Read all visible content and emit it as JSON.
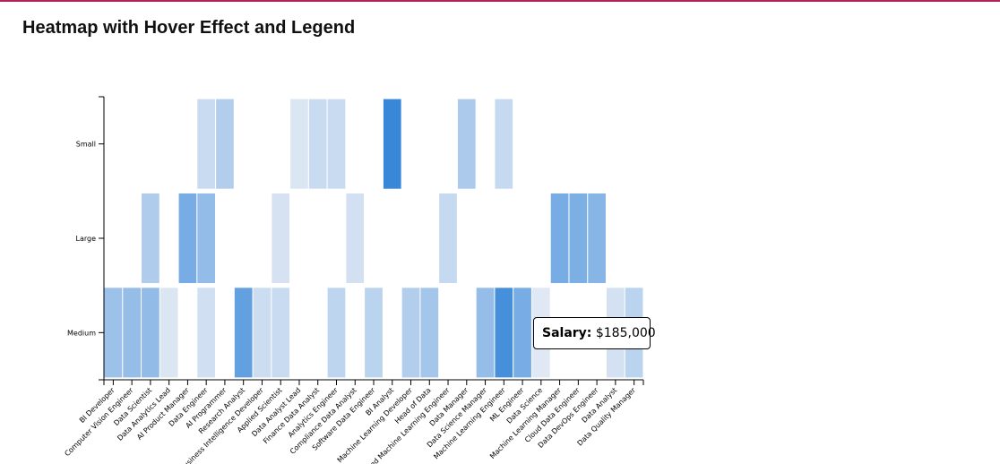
{
  "page": {
    "title": "Heatmap with Hover Effect and Legend"
  },
  "tooltip": {
    "label": "Salary:",
    "value": "$185,000"
  },
  "chart_data": {
    "type": "heatmap",
    "title": "Heatmap with Hover Effect and Legend",
    "xlabel": "",
    "ylabel": "",
    "x_categories": [
      "BI Developer",
      "Computer Vision Engineer",
      "Data Scientist",
      "Data Analytics Lead",
      "AI Product Manager",
      "Data Engineer",
      "AI Programmer",
      "Research Analyst",
      "Business Intelligence Developer",
      "Applied Scientist",
      "Data Analyst Lead",
      "Finance Data Analyst",
      "Analytics Engineer",
      "Compliance Data Analyst",
      "Software Data Engineer",
      "BI Analyst",
      "Machine Learning Developer",
      "Head of Data",
      "Applied Machine Learning Engineer",
      "Data Manager",
      "Data Science Manager",
      "Machine Learning Engineer",
      "ML Engineer",
      "Data Science",
      "Machine Learning Manager",
      "Cloud Data Engineer",
      "Data DevOps Engineer",
      "Data Analyst",
      "Data Quality Manager"
    ],
    "y_categories": [
      "Small",
      "Large",
      "Medium"
    ],
    "color_scale": {
      "low": "#e6ecf5",
      "high": "#2f82d8"
    },
    "cells": [
      {
        "x": "Data Engineer",
        "y": "Small",
        "value": 0.16
      },
      {
        "x": "AI Programmer",
        "y": "Small",
        "value": 0.28
      },
      {
        "x": "Data Analyst Lead",
        "y": "Small",
        "value": 0.06
      },
      {
        "x": "Finance Data Analyst",
        "y": "Small",
        "value": 0.16
      },
      {
        "x": "Analytics Engineer",
        "y": "Small",
        "value": 0.16
      },
      {
        "x": "BI Analyst",
        "y": "Small",
        "value": 0.95
      },
      {
        "x": "Data Manager",
        "y": "Small",
        "value": 0.32
      },
      {
        "x": "Machine Learning Engineer",
        "y": "Small",
        "value": 0.18
      },
      {
        "x": "Data Scientist",
        "y": "Large",
        "value": 0.3
      },
      {
        "x": "AI Product Manager",
        "y": "Large",
        "value": 0.6
      },
      {
        "x": "Data Engineer",
        "y": "Large",
        "value": 0.45
      },
      {
        "x": "Applied Scientist",
        "y": "Large",
        "value": 0.09
      },
      {
        "x": "Compliance Data Analyst",
        "y": "Large",
        "value": 0.11
      },
      {
        "x": "Applied Machine Learning Engineer",
        "y": "Large",
        "value": 0.18
      },
      {
        "x": "Machine Learning Manager",
        "y": "Large",
        "value": 0.6
      },
      {
        "x": "Cloud Data Engineer",
        "y": "Large",
        "value": 0.58
      },
      {
        "x": "Data DevOps Engineer",
        "y": "Large",
        "value": 0.52
      },
      {
        "x": "BI Developer",
        "y": "Medium",
        "value": 0.4
      },
      {
        "x": "Computer Vision Engineer",
        "y": "Medium",
        "value": 0.44
      },
      {
        "x": "Data Scientist",
        "y": "Medium",
        "value": 0.46
      },
      {
        "x": "Data Analytics Lead",
        "y": "Medium",
        "value": 0.06
      },
      {
        "x": "Data Engineer",
        "y": "Medium",
        "value": 0.12
      },
      {
        "x": "Research Analyst",
        "y": "Medium",
        "value": 0.72
      },
      {
        "x": "Business Intelligence Developer",
        "y": "Medium",
        "value": 0.14
      },
      {
        "x": "Applied Scientist",
        "y": "Medium",
        "value": 0.16
      },
      {
        "x": "Analytics Engineer",
        "y": "Medium",
        "value": 0.22
      },
      {
        "x": "Software Data Engineer",
        "y": "Medium",
        "value": 0.24
      },
      {
        "x": "Machine Learning Developer",
        "y": "Medium",
        "value": 0.28
      },
      {
        "x": "Head of Data",
        "y": "Medium",
        "value": 0.36
      },
      {
        "x": "Data Science Manager",
        "y": "Medium",
        "value": 0.44
      },
      {
        "x": "Machine Learning Engineer",
        "y": "Medium",
        "value": 0.88
      },
      {
        "x": "ML Engineer",
        "y": "Medium",
        "value": 0.6
      },
      {
        "x": "Data Science",
        "y": "Medium",
        "value": 0.04
      },
      {
        "x": "Data Analyst",
        "y": "Medium",
        "value": 0.1
      },
      {
        "x": "Data Quality Manager",
        "y": "Medium",
        "value": 0.24
      }
    ],
    "legend": "none visible",
    "grid": false
  }
}
